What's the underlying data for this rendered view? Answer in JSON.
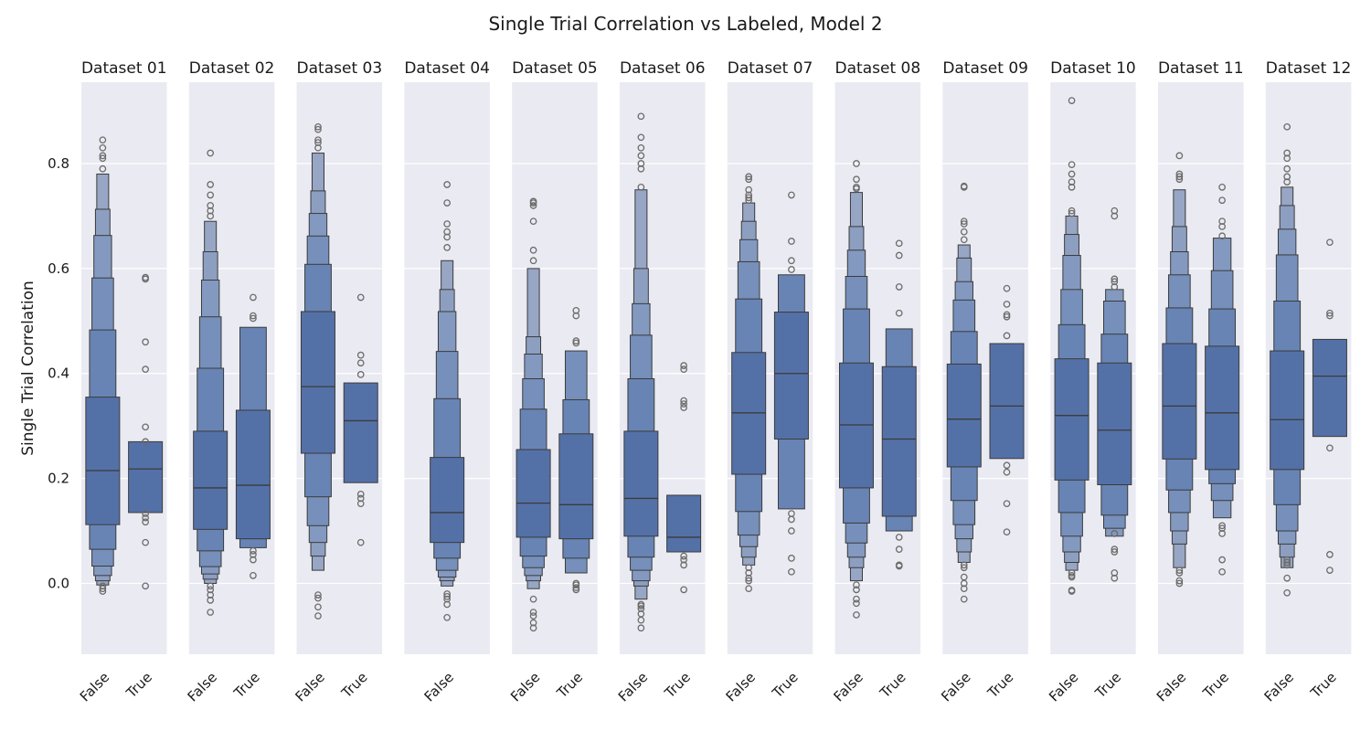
{
  "chart_data": {
    "type": "boxen",
    "title": "Single Trial Correlation vs Labeled, Model 2",
    "ylabel": "Single Trial Correlation",
    "xlabel": "",
    "ylim": [
      -0.135,
      0.955
    ],
    "yticks": [
      0.0,
      0.2,
      0.4,
      0.6,
      0.8
    ],
    "grid": true,
    "colors": {
      "panel_bg": "#eaeaf2",
      "grid": "#ffffff",
      "box": "#4c72b0",
      "edge": "#3b3b3b",
      "flier": "#6b6b6b"
    },
    "panels": [
      {
        "title": "Dataset 01",
        "categories": [
          {
            "label": "False",
            "median": 0.215,
            "levels": [
              [
                0.112,
                0.355
              ],
              [
                0.065,
                0.483
              ],
              [
                0.033,
                0.582
              ],
              [
                0.015,
                0.663
              ],
              [
                0.005,
                0.713
              ],
              [
                -0.003,
                0.78
              ]
            ],
            "outliers": [
              -0.015,
              -0.01,
              -0.005,
              0.79,
              0.81,
              0.815,
              0.83,
              0.845
            ]
          },
          {
            "label": "True",
            "median": 0.218,
            "levels": [
              [
                0.135,
                0.27
              ]
            ],
            "outliers": [
              -0.005,
              0.078,
              0.117,
              0.125,
              0.133,
              0.27,
              0.298,
              0.408,
              0.46,
              0.58,
              0.583
            ]
          }
        ]
      },
      {
        "title": "Dataset 02",
        "categories": [
          {
            "label": "False",
            "median": 0.182,
            "levels": [
              [
                0.103,
                0.29
              ],
              [
                0.062,
                0.41
              ],
              [
                0.032,
                0.508
              ],
              [
                0.018,
                0.578
              ],
              [
                0.008,
                0.632
              ],
              [
                0.0,
                0.69
              ]
            ],
            "outliers": [
              -0.055,
              -0.032,
              -0.022,
              -0.012,
              -0.005,
              0.7,
              0.71,
              0.72,
              0.74,
              0.76,
              0.82
            ]
          },
          {
            "label": "True",
            "median": 0.187,
            "levels": [
              [
                0.085,
                0.33
              ],
              [
                0.068,
                0.488
              ]
            ],
            "outliers": [
              0.015,
              0.045,
              0.055,
              0.062,
              0.505,
              0.51,
              0.545
            ]
          }
        ]
      },
      {
        "title": "Dataset 03",
        "categories": [
          {
            "label": "False",
            "median": 0.375,
            "levels": [
              [
                0.248,
                0.518
              ],
              [
                0.165,
                0.608
              ],
              [
                0.11,
                0.662
              ],
              [
                0.078,
                0.705
              ],
              [
                0.052,
                0.748
              ],
              [
                0.025,
                0.82
              ]
            ],
            "outliers": [
              -0.062,
              -0.045,
              -0.028,
              -0.022,
              0.83,
              0.84,
              0.845,
              0.865,
              0.87
            ]
          },
          {
            "label": "True",
            "median": 0.31,
            "levels": [
              [
                0.192,
                0.382
              ]
            ],
            "outliers": [
              0.078,
              0.152,
              0.162,
              0.17,
              0.398,
              0.42,
              0.435,
              0.545
            ]
          }
        ]
      },
      {
        "title": "Dataset 04",
        "categories": [
          {
            "label": "False",
            "median": 0.135,
            "levels": [
              [
                0.078,
                0.24
              ],
              [
                0.048,
                0.352
              ],
              [
                0.025,
                0.442
              ],
              [
                0.012,
                0.518
              ],
              [
                0.005,
                0.56
              ],
              [
                -0.005,
                0.615
              ]
            ],
            "outliers": [
              -0.065,
              -0.04,
              -0.03,
              -0.025,
              -0.02,
              0.64,
              0.66,
              0.67,
              0.685,
              0.725,
              0.76
            ]
          }
        ]
      },
      {
        "title": "Dataset 05",
        "categories": [
          {
            "label": "False",
            "median": 0.153,
            "levels": [
              [
                0.088,
                0.255
              ],
              [
                0.052,
                0.332
              ],
              [
                0.03,
                0.39
              ],
              [
                0.015,
                0.437
              ],
              [
                0.005,
                0.47
              ],
              [
                -0.01,
                0.6
              ]
            ],
            "outliers": [
              -0.085,
              -0.075,
              -0.062,
              -0.055,
              -0.03,
              0.615,
              0.635,
              0.69,
              0.72,
              0.725,
              0.728
            ]
          },
          {
            "label": "True",
            "median": 0.15,
            "levels": [
              [
                0.085,
                0.285
              ],
              [
                0.048,
                0.35
              ],
              [
                0.02,
                0.443
              ]
            ],
            "outliers": [
              -0.012,
              -0.008,
              -0.003,
              0.0,
              0.458,
              0.462,
              0.51,
              0.52
            ]
          }
        ]
      },
      {
        "title": "Dataset 06",
        "categories": [
          {
            "label": "False",
            "median": 0.162,
            "levels": [
              [
                0.09,
                0.29
              ],
              [
                0.05,
                0.39
              ],
              [
                0.025,
                0.473
              ],
              [
                0.005,
                0.533
              ],
              [
                -0.005,
                0.6
              ],
              [
                -0.03,
                0.75
              ]
            ],
            "outliers": [
              -0.085,
              -0.07,
              -0.058,
              -0.048,
              -0.043,
              -0.04,
              0.755,
              0.79,
              0.8,
              0.815,
              0.83,
              0.85,
              0.89
            ]
          },
          {
            "label": "True",
            "median": 0.088,
            "levels": [
              [
                0.06,
                0.168
              ]
            ],
            "outliers": [
              -0.012,
              0.035,
              0.045,
              0.052,
              0.335,
              0.342,
              0.348,
              0.408,
              0.415
            ]
          }
        ]
      },
      {
        "title": "Dataset 07",
        "categories": [
          {
            "label": "False",
            "median": 0.325,
            "levels": [
              [
                0.208,
                0.44
              ],
              [
                0.137,
                0.542
              ],
              [
                0.092,
                0.613
              ],
              [
                0.07,
                0.655
              ],
              [
                0.05,
                0.69
              ],
              [
                0.035,
                0.725
              ]
            ],
            "outliers": [
              -0.01,
              0.005,
              0.01,
              0.02,
              0.03,
              0.73,
              0.735,
              0.74,
              0.75,
              0.77,
              0.775
            ]
          },
          {
            "label": "True",
            "median": 0.4,
            "levels": [
              [
                0.275,
                0.517
              ],
              [
                0.142,
                0.588
              ]
            ],
            "outliers": [
              0.022,
              0.048,
              0.1,
              0.122,
              0.133,
              0.598,
              0.615,
              0.652,
              0.74
            ]
          }
        ]
      },
      {
        "title": "Dataset 08",
        "categories": [
          {
            "label": "False",
            "median": 0.302,
            "levels": [
              [
                0.182,
                0.42
              ],
              [
                0.115,
                0.523
              ],
              [
                0.077,
                0.585
              ],
              [
                0.05,
                0.635
              ],
              [
                0.03,
                0.68
              ],
              [
                0.005,
                0.745
              ]
            ],
            "outliers": [
              -0.06,
              -0.038,
              -0.03,
              -0.012,
              -0.003,
              0.752,
              0.755,
              0.77,
              0.8
            ]
          },
          {
            "label": "True",
            "median": 0.275,
            "levels": [
              [
                0.128,
                0.413
              ],
              [
                0.1,
                0.485
              ]
            ],
            "outliers": [
              0.033,
              0.035,
              0.065,
              0.088,
              0.515,
              0.565,
              0.625,
              0.648
            ]
          }
        ]
      },
      {
        "title": "Dataset 09",
        "categories": [
          {
            "label": "False",
            "median": 0.313,
            "levels": [
              [
                0.222,
                0.418
              ],
              [
                0.158,
                0.48
              ],
              [
                0.112,
                0.54
              ],
              [
                0.085,
                0.575
              ],
              [
                0.06,
                0.62
              ],
              [
                0.04,
                0.645
              ]
            ],
            "outliers": [
              -0.03,
              -0.01,
              0.0,
              0.012,
              0.03,
              0.035,
              0.655,
              0.67,
              0.685,
              0.69,
              0.755,
              0.757
            ]
          },
          {
            "label": "True",
            "median": 0.338,
            "levels": [
              [
                0.238,
                0.457
              ]
            ],
            "outliers": [
              0.098,
              0.152,
              0.212,
              0.225,
              0.472,
              0.508,
              0.512,
              0.532,
              0.562
            ]
          }
        ]
      },
      {
        "title": "Dataset 10",
        "categories": [
          {
            "label": "False",
            "median": 0.32,
            "levels": [
              [
                0.197,
                0.428
              ],
              [
                0.135,
                0.493
              ],
              [
                0.09,
                0.56
              ],
              [
                0.06,
                0.625
              ],
              [
                0.04,
                0.665
              ],
              [
                0.025,
                0.7
              ]
            ],
            "outliers": [
              -0.015,
              -0.013,
              0.012,
              0.015,
              0.02,
              0.705,
              0.71,
              0.755,
              0.765,
              0.78,
              0.798,
              0.92
            ]
          },
          {
            "label": "True",
            "median": 0.292,
            "levels": [
              [
                0.188,
                0.42
              ],
              [
                0.13,
                0.475
              ],
              [
                0.105,
                0.538
              ],
              [
                0.09,
                0.56
              ]
            ],
            "outliers": [
              0.01,
              0.02,
              0.06,
              0.065,
              0.095,
              0.565,
              0.575,
              0.58,
              0.7,
              0.71
            ]
          }
        ]
      },
      {
        "title": "Dataset 11",
        "categories": [
          {
            "label": "False",
            "median": 0.338,
            "levels": [
              [
                0.237,
                0.457
              ],
              [
                0.178,
                0.525
              ],
              [
                0.135,
                0.588
              ],
              [
                0.1,
                0.632
              ],
              [
                0.075,
                0.68
              ],
              [
                0.03,
                0.75
              ]
            ],
            "outliers": [
              0.0,
              0.005,
              0.02,
              0.025,
              0.77,
              0.775,
              0.78,
              0.815
            ]
          },
          {
            "label": "True",
            "median": 0.325,
            "levels": [
              [
                0.217,
                0.452
              ],
              [
                0.19,
                0.523
              ],
              [
                0.158,
                0.596
              ],
              [
                0.125,
                0.658
              ]
            ],
            "outliers": [
              0.022,
              0.045,
              0.095,
              0.105,
              0.11,
              0.662,
              0.68,
              0.69,
              0.73,
              0.755
            ]
          }
        ]
      },
      {
        "title": "Dataset 12",
        "categories": [
          {
            "label": "False",
            "median": 0.312,
            "levels": [
              [
                0.217,
                0.443
              ],
              [
                0.15,
                0.538
              ],
              [
                0.1,
                0.626
              ],
              [
                0.075,
                0.675
              ],
              [
                0.05,
                0.72
              ],
              [
                0.03,
                0.755
              ]
            ],
            "outliers": [
              -0.018,
              0.01,
              0.035,
              0.04,
              0.045,
              0.765,
              0.775,
              0.79,
              0.81,
              0.82,
              0.87
            ]
          },
          {
            "label": "True",
            "median": 0.395,
            "levels": [
              [
                0.28,
                0.465
              ]
            ],
            "outliers": [
              0.025,
              0.055,
              0.258,
              0.51,
              0.515,
              0.65
            ]
          }
        ]
      }
    ]
  }
}
